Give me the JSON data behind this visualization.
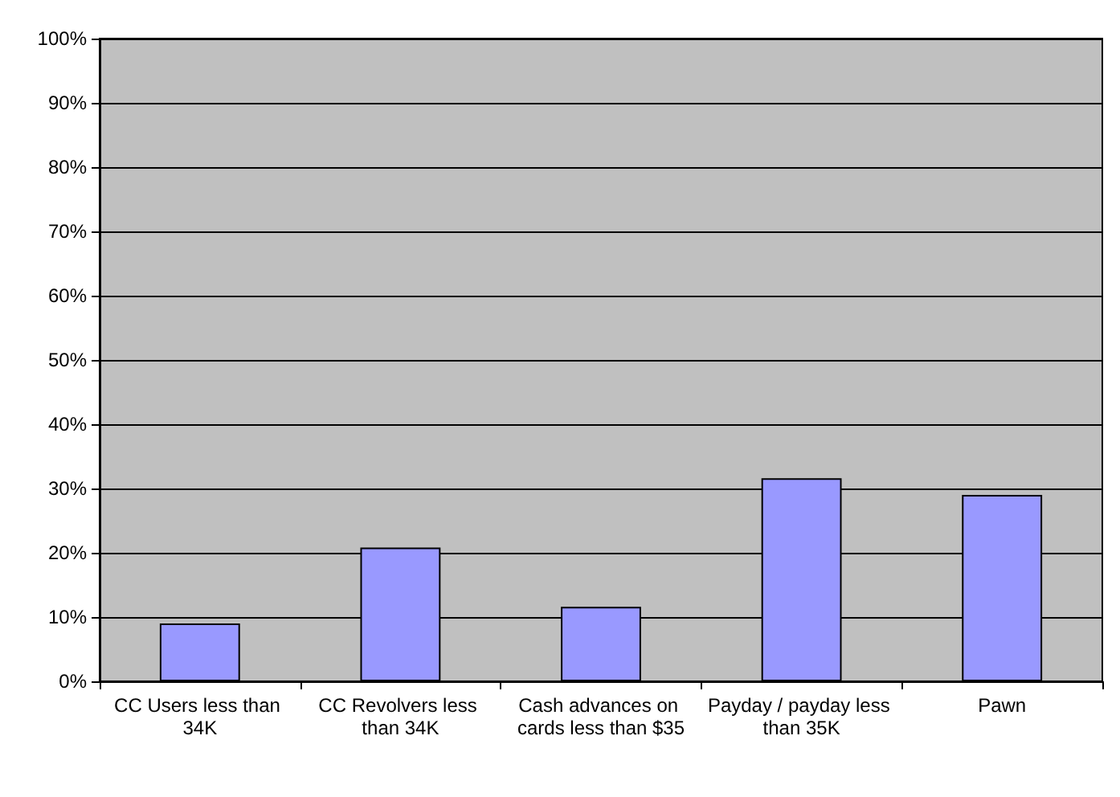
{
  "chart_data": {
    "type": "bar",
    "categories": [
      "CC Users less than 34K",
      "CC Revolvers less than 34K",
      "Cash advances on cards less than $35",
      "Payday / payday less than 35K",
      "Pawn"
    ],
    "values": [
      9,
      20.8,
      11.6,
      31.6,
      29
    ],
    "color": "#9999ff",
    "ylim": [
      0,
      100
    ],
    "yticks": [
      {
        "value": 0,
        "label": "0%"
      },
      {
        "value": 10,
        "label": "10%"
      },
      {
        "value": 20,
        "label": "20%"
      },
      {
        "value": 30,
        "label": "30%"
      },
      {
        "value": 40,
        "label": "40%"
      },
      {
        "value": 50,
        "label": "50%"
      },
      {
        "value": 60,
        "label": "60%"
      },
      {
        "value": 70,
        "label": "70%"
      },
      {
        "value": 80,
        "label": "80%"
      },
      {
        "value": 90,
        "label": "90%"
      },
      {
        "value": 100,
        "label": "100%"
      }
    ],
    "grid": "y"
  }
}
